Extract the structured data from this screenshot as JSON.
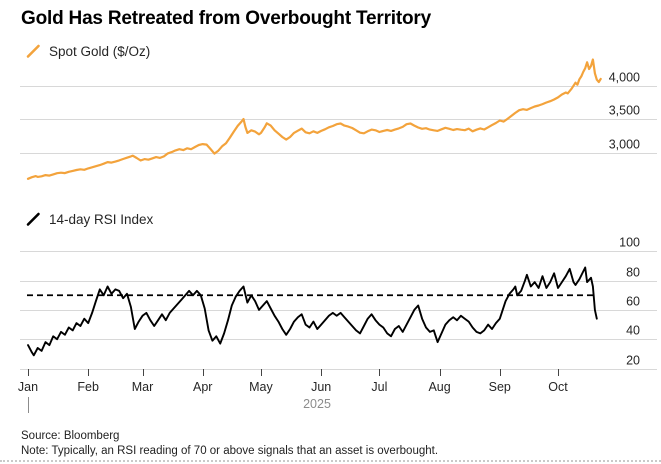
{
  "title": "Gold Has Retreated from Overbought Territory",
  "colors": {
    "gold_line": "#F3A33C",
    "rsi_line": "#000000",
    "grid": "#D8D8D8",
    "axis_text": "#262626",
    "year_text": "#8C8C8C",
    "threshold": "#000000"
  },
  "x_axis": {
    "month_labels": [
      "Jan",
      "Feb",
      "Mar",
      "Apr",
      "May",
      "Jun",
      "Jul",
      "Aug",
      "Sep",
      "Oct"
    ],
    "month_start_days": [
      0,
      31,
      59,
      90,
      120,
      151,
      181,
      212,
      243,
      273
    ],
    "year_label": "2025",
    "end_day": 295
  },
  "footer": {
    "source": "Source: Bloomberg",
    "note": "Note: Typically, an RSI reading of 70 or above signals that an asset is overbought."
  },
  "chart_data": [
    {
      "id": "spot-gold",
      "type": "line",
      "legend_label": "Spot Gold ($/Oz)",
      "color": "#F3A33C",
      "x_unit": "day of 2025",
      "ylim": [
        2540,
        4460
      ],
      "grid": true,
      "y_ticks": [
        {
          "value": 3000,
          "label": "3,000"
        },
        {
          "value": 3500,
          "label": "3,500"
        },
        {
          "value": 4000,
          "label": "4,000"
        }
      ],
      "points": [
        [
          0,
          2608
        ],
        [
          2,
          2632
        ],
        [
          4,
          2648
        ],
        [
          5,
          2636
        ],
        [
          7,
          2645
        ],
        [
          9,
          2663
        ],
        [
          11,
          2655
        ],
        [
          13,
          2673
        ],
        [
          15,
          2691
        ],
        [
          17,
          2699
        ],
        [
          19,
          2692
        ],
        [
          21,
          2712
        ],
        [
          23,
          2726
        ],
        [
          25,
          2739
        ],
        [
          27,
          2749
        ],
        [
          29,
          2742
        ],
        [
          31,
          2762
        ],
        [
          33,
          2779
        ],
        [
          35,
          2796
        ],
        [
          37,
          2812
        ],
        [
          39,
          2833
        ],
        [
          41,
          2857
        ],
        [
          43,
          2849
        ],
        [
          45,
          2864
        ],
        [
          47,
          2882
        ],
        [
          49,
          2903
        ],
        [
          51,
          2922
        ],
        [
          53,
          2942
        ],
        [
          54,
          2952
        ],
        [
          56,
          2918
        ],
        [
          58,
          2880
        ],
        [
          60,
          2902
        ],
        [
          62,
          2893
        ],
        [
          64,
          2912
        ],
        [
          66,
          2932
        ],
        [
          68,
          2919
        ],
        [
          70,
          2942
        ],
        [
          72,
          2986
        ],
        [
          74,
          3006
        ],
        [
          76,
          3032
        ],
        [
          78,
          3049
        ],
        [
          80,
          3036
        ],
        [
          82,
          3062
        ],
        [
          84,
          3050
        ],
        [
          86,
          3082
        ],
        [
          88,
          3112
        ],
        [
          90,
          3126
        ],
        [
          92,
          3118
        ],
        [
          94,
          3052
        ],
        [
          96,
          2983
        ],
        [
          98,
          3027
        ],
        [
          100,
          3092
        ],
        [
          102,
          3137
        ],
        [
          104,
          3222
        ],
        [
          106,
          3312
        ],
        [
          108,
          3397
        ],
        [
          110,
          3462
        ],
        [
          111,
          3500
        ],
        [
          112,
          3382
        ],
        [
          113,
          3292
        ],
        [
          115,
          3332
        ],
        [
          117,
          3312
        ],
        [
          119,
          3272
        ],
        [
          120,
          3292
        ],
        [
          122,
          3382
        ],
        [
          123,
          3436
        ],
        [
          125,
          3402
        ],
        [
          127,
          3332
        ],
        [
          129,
          3282
        ],
        [
          131,
          3232
        ],
        [
          133,
          3192
        ],
        [
          135,
          3232
        ],
        [
          137,
          3292
        ],
        [
          139,
          3326
        ],
        [
          141,
          3356
        ],
        [
          143,
          3302
        ],
        [
          145,
          3287
        ],
        [
          147,
          3316
        ],
        [
          149,
          3292
        ],
        [
          151,
          3322
        ],
        [
          153,
          3346
        ],
        [
          155,
          3376
        ],
        [
          157,
          3396
        ],
        [
          159,
          3422
        ],
        [
          161,
          3433
        ],
        [
          163,
          3402
        ],
        [
          165,
          3386
        ],
        [
          167,
          3366
        ],
        [
          169,
          3332
        ],
        [
          171,
          3296
        ],
        [
          173,
          3286
        ],
        [
          175,
          3316
        ],
        [
          177,
          3342
        ],
        [
          179,
          3332
        ],
        [
          181,
          3306
        ],
        [
          183,
          3322
        ],
        [
          185,
          3336
        ],
        [
          187,
          3323
        ],
        [
          189,
          3342
        ],
        [
          191,
          3359
        ],
        [
          193,
          3382
        ],
        [
          195,
          3422
        ],
        [
          197,
          3433
        ],
        [
          199,
          3402
        ],
        [
          201,
          3373
        ],
        [
          203,
          3353
        ],
        [
          205,
          3363
        ],
        [
          207,
          3342
        ],
        [
          209,
          3332
        ],
        [
          211,
          3323
        ],
        [
          213,
          3346
        ],
        [
          215,
          3369
        ],
        [
          217,
          3353
        ],
        [
          219,
          3336
        ],
        [
          221,
          3349
        ],
        [
          223,
          3341
        ],
        [
          225,
          3333
        ],
        [
          227,
          3356
        ],
        [
          229,
          3316
        ],
        [
          231,
          3341
        ],
        [
          233,
          3359
        ],
        [
          235,
          3343
        ],
        [
          237,
          3376
        ],
        [
          239,
          3409
        ],
        [
          241,
          3441
        ],
        [
          243,
          3477
        ],
        [
          245,
          3461
        ],
        [
          247,
          3502
        ],
        [
          249,
          3546
        ],
        [
          251,
          3591
        ],
        [
          253,
          3631
        ],
        [
          255,
          3646
        ],
        [
          257,
          3636
        ],
        [
          259,
          3662
        ],
        [
          261,
          3686
        ],
        [
          263,
          3702
        ],
        [
          265,
          3722
        ],
        [
          267,
          3746
        ],
        [
          269,
          3766
        ],
        [
          271,
          3791
        ],
        [
          273,
          3822
        ],
        [
          275,
          3866
        ],
        [
          277,
          3896
        ],
        [
          278,
          3882
        ],
        [
          280,
          3952
        ],
        [
          282,
          4042
        ],
        [
          283,
          4012
        ],
        [
          284,
          4092
        ],
        [
          285,
          4136
        ],
        [
          286,
          4202
        ],
        [
          287,
          4258
        ],
        [
          288,
          4346
        ],
        [
          289,
          4246
        ],
        [
          290,
          4292
        ],
        [
          291,
          4388
        ],
        [
          292,
          4182
        ],
        [
          293,
          4086
        ],
        [
          294,
          4052
        ],
        [
          295,
          4098
        ]
      ]
    },
    {
      "id": "rsi",
      "type": "line",
      "legend_label": "14-day RSI Index",
      "color": "#000000",
      "x_unit": "day of 2025",
      "ylim": [
        14,
        104
      ],
      "grid": true,
      "threshold": {
        "value": 70,
        "style": "dashed"
      },
      "y_ticks": [
        {
          "value": 20,
          "label": "20"
        },
        {
          "value": 40,
          "label": "40"
        },
        {
          "value": 60,
          "label": "60"
        },
        {
          "value": 80,
          "label": "80"
        },
        {
          "value": 100,
          "label": "100"
        }
      ],
      "points": [
        [
          0,
          36
        ],
        [
          2,
          31
        ],
        [
          3,
          29
        ],
        [
          5,
          34
        ],
        [
          7,
          32
        ],
        [
          9,
          38
        ],
        [
          11,
          36
        ],
        [
          13,
          42
        ],
        [
          15,
          40
        ],
        [
          17,
          45
        ],
        [
          19,
          43
        ],
        [
          21,
          48
        ],
        [
          23,
          46
        ],
        [
          25,
          51
        ],
        [
          27,
          49
        ],
        [
          29,
          54
        ],
        [
          31,
          51
        ],
        [
          33,
          58
        ],
        [
          35,
          66
        ],
        [
          37,
          74
        ],
        [
          39,
          70
        ],
        [
          41,
          76
        ],
        [
          43,
          71
        ],
        [
          45,
          74
        ],
        [
          47,
          73
        ],
        [
          49,
          68
        ],
        [
          51,
          71
        ],
        [
          53,
          62
        ],
        [
          55,
          47
        ],
        [
          57,
          52
        ],
        [
          59,
          56
        ],
        [
          61,
          58
        ],
        [
          63,
          53
        ],
        [
          65,
          49
        ],
        [
          67,
          53
        ],
        [
          69,
          57
        ],
        [
          71,
          53
        ],
        [
          73,
          58
        ],
        [
          75,
          61
        ],
        [
          77,
          64
        ],
        [
          79,
          67
        ],
        [
          81,
          70
        ],
        [
          83,
          73
        ],
        [
          85,
          70
        ],
        [
          87,
          73
        ],
        [
          89,
          70
        ],
        [
          91,
          61
        ],
        [
          93,
          46
        ],
        [
          95,
          39
        ],
        [
          97,
          42
        ],
        [
          99,
          37
        ],
        [
          101,
          44
        ],
        [
          103,
          53
        ],
        [
          105,
          63
        ],
        [
          107,
          69
        ],
        [
          109,
          73
        ],
        [
          111,
          76
        ],
        [
          113,
          65
        ],
        [
          115,
          70
        ],
        [
          117,
          66
        ],
        [
          119,
          60
        ],
        [
          121,
          63
        ],
        [
          123,
          66
        ],
        [
          125,
          61
        ],
        [
          127,
          56
        ],
        [
          129,
          52
        ],
        [
          131,
          47
        ],
        [
          133,
          43
        ],
        [
          135,
          47
        ],
        [
          137,
          52
        ],
        [
          139,
          55
        ],
        [
          141,
          57
        ],
        [
          143,
          50
        ],
        [
          145,
          48
        ],
        [
          147,
          52
        ],
        [
          149,
          47
        ],
        [
          151,
          50
        ],
        [
          153,
          53
        ],
        [
          155,
          56
        ],
        [
          157,
          58
        ],
        [
          159,
          56
        ],
        [
          161,
          58
        ],
        [
          163,
          55
        ],
        [
          165,
          52
        ],
        [
          167,
          49
        ],
        [
          169,
          46
        ],
        [
          171,
          44
        ],
        [
          173,
          49
        ],
        [
          175,
          54
        ],
        [
          177,
          57
        ],
        [
          179,
          53
        ],
        [
          181,
          50
        ],
        [
          183,
          48
        ],
        [
          185,
          44
        ],
        [
          187,
          42
        ],
        [
          189,
          47
        ],
        [
          191,
          49
        ],
        [
          193,
          45
        ],
        [
          195,
          50
        ],
        [
          197,
          55
        ],
        [
          199,
          60
        ],
        [
          201,
          63
        ],
        [
          203,
          54
        ],
        [
          205,
          48
        ],
        [
          207,
          45
        ],
        [
          209,
          46
        ],
        [
          210,
          42
        ],
        [
          211,
          38
        ],
        [
          213,
          44
        ],
        [
          215,
          50
        ],
        [
          217,
          53
        ],
        [
          219,
          55
        ],
        [
          221,
          53
        ],
        [
          223,
          56
        ],
        [
          225,
          54
        ],
        [
          227,
          52
        ],
        [
          229,
          48
        ],
        [
          231,
          45
        ],
        [
          233,
          44
        ],
        [
          235,
          46
        ],
        [
          237,
          50
        ],
        [
          239,
          47
        ],
        [
          241,
          51
        ],
        [
          243,
          54
        ],
        [
          244,
          58
        ],
        [
          246,
          66
        ],
        [
          248,
          71
        ],
        [
          250,
          74
        ],
        [
          251,
          76
        ],
        [
          252,
          70
        ],
        [
          254,
          73
        ],
        [
          256,
          80
        ],
        [
          257,
          84
        ],
        [
          259,
          76
        ],
        [
          261,
          79
        ],
        [
          263,
          75
        ],
        [
          265,
          83
        ],
        [
          267,
          75
        ],
        [
          269,
          79
        ],
        [
          271,
          85
        ],
        [
          273,
          75
        ],
        [
          275,
          79
        ],
        [
          277,
          83
        ],
        [
          279,
          88
        ],
        [
          281,
          79
        ],
        [
          282,
          77
        ],
        [
          284,
          81
        ],
        [
          287,
          89
        ],
        [
          288,
          79
        ],
        [
          290,
          82
        ],
        [
          291,
          76
        ],
        [
          292,
          60
        ],
        [
          293,
          54
        ]
      ]
    }
  ]
}
